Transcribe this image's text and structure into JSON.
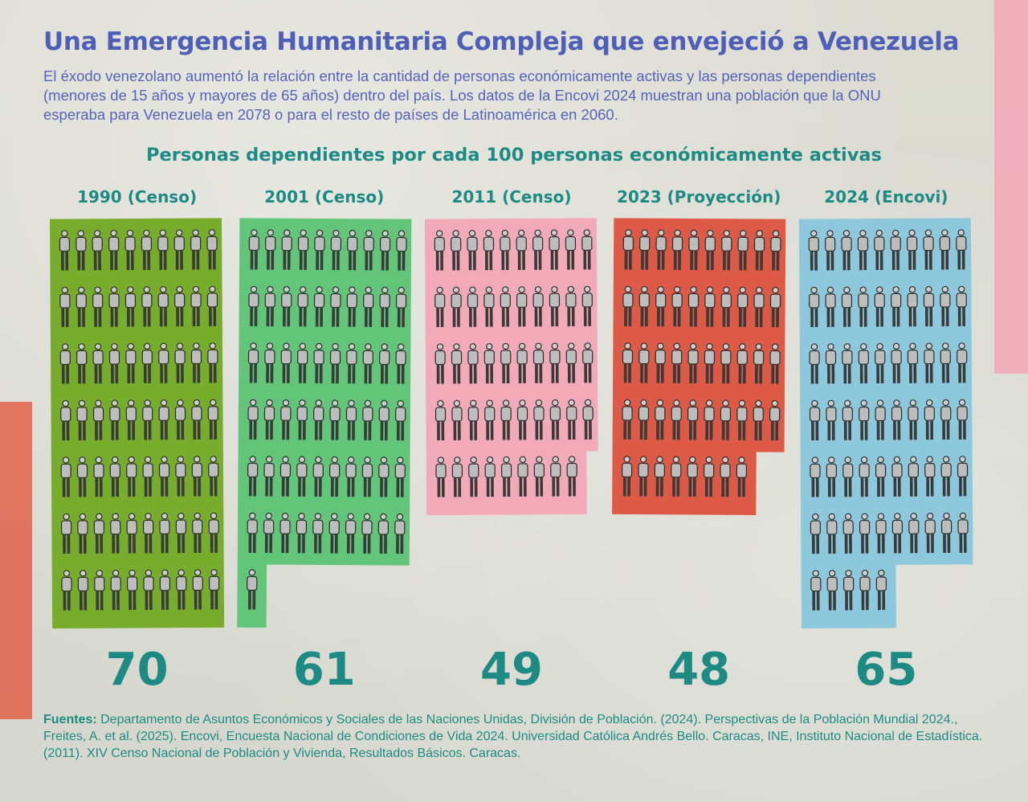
{
  "title": "Una Emergencia Humanitaria Compleja que envejeció a Venezuela",
  "subtitle": "El éxodo venezolano aumentó la relación entre la cantidad de personas económicamente activas y las personas dependientes (menores de 15 años y mayores de 65 años) dentro del país. Los datos de la Encovi 2024 muestran una población que la ONU esperaba para Venezuela en 2078 o para el resto de países de Latinoamérica en 2060.",
  "chart_data": {
    "type": "bar",
    "title": "Personas dependientes por cada 100 personas económicamente activas",
    "categories": [
      "1990 (Censo)",
      "2001 (Censo)",
      "2011 (Censo)",
      "2023 (Proyección)",
      "2024 (Encovi)"
    ],
    "values": [
      70,
      61,
      49,
      48,
      65
    ],
    "xlabel": "",
    "ylabel": "",
    "colors": [
      "#77ac2c",
      "#63c57a",
      "#f2aab8",
      "#dd5a46",
      "#8ec8dc"
    ]
  },
  "sources": {
    "label": "Fuentes:",
    "text": " Departamento de Asuntos Económicos y Sociales de las Naciones Unidas, División de Población. (2024). Perspectivas de la Población Mundial 2024., Freites, A. et al. (2025). Encovi, Encuesta Nacional de Condiciones de Vida 2024. Universidad Católica Andrés Bello. Caracas, INE, Instituto Nacional de Estadística. (2011). XIV Censo Nacional de Población y Vivienda, Resultados Básicos. Caracas."
  }
}
